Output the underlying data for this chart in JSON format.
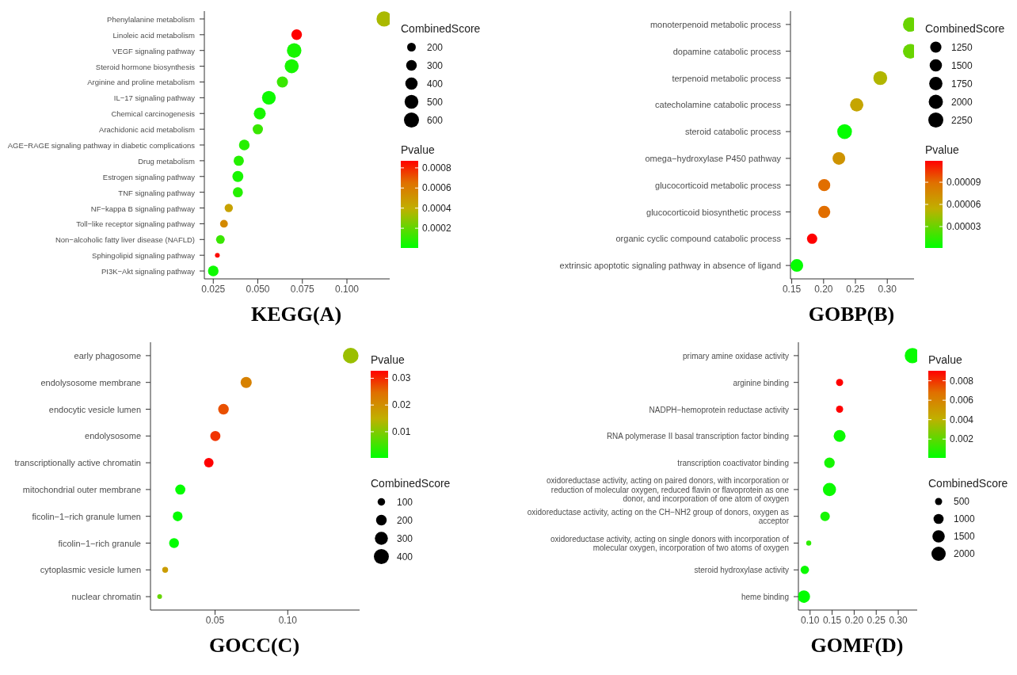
{
  "chart_data": [
    {
      "type": "bubble",
      "title": "KEGG(A)",
      "orientation": "horizontal",
      "legend_title": "CombinedScore",
      "clabel": "Pvalue",
      "categories": [
        "Phenylalanine metabolism",
        "Linoleic acid metabolism",
        "VEGF signaling pathway",
        "Steroid hormone biosynthesis",
        "Arginine and proline metabolism",
        "IL−17 signaling pathway",
        "Chemical carcinogenesis",
        "Arachidonic acid metabolism",
        "AGE−RAGE signaling pathway in diabetic complications",
        "Drug metabolism",
        "Estrogen signaling pathway",
        "TNF signaling pathway",
        "NF−kappa B signaling pathway",
        "Toll−like receptor signaling pathway",
        "Non−alcoholic fatty liver disease (NAFLD)",
        "Sphingolipid signaling pathway",
        "PI3K−Akt signaling pathway"
      ],
      "values": [
        0.1209,
        0.0718,
        0.0704,
        0.069,
        0.0638,
        0.0562,
        0.0511,
        0.05,
        0.0424,
        0.0393,
        0.0388,
        0.0388,
        0.0337,
        0.031,
        0.029,
        0.0273,
        0.025
      ],
      "sizes": [
        620,
        300,
        560,
        520,
        330,
        500,
        380,
        280,
        300,
        280,
        320,
        270,
        180,
        160,
        200,
        60,
        300
      ],
      "cvalues": [
        0.00035,
        0.00087,
        5e-05,
        5e-05,
        0.00012,
        3e-05,
        5e-05,
        0.00012,
        8e-05,
        8e-05,
        5e-05,
        8e-05,
        0.00045,
        0.00055,
        0.00012,
        0.00085,
        3e-05
      ],
      "size_legend": [
        200,
        300,
        400,
        500,
        600
      ],
      "clim": [
        4e-06,
        0.00087
      ],
      "cticks": [
        0.0002,
        0.0004,
        0.0006,
        0.0008
      ],
      "xlim": [
        0.02,
        0.124
      ],
      "xticks": [
        0.025,
        {
          "value": 0.05,
          "label": "0.050"
        },
        0.075,
        {
          "value": 0.1,
          "label": "0.100"
        }
      ]
    },
    {
      "type": "bubble",
      "title": "GOBP(B)",
      "orientation": "horizontal",
      "legend_title": "CombinedScore",
      "clabel": "Pvalue",
      "categories": [
        "monoterpenoid metabolic process",
        "dopamine catabolic process",
        "terpenoid metabolic process",
        "catecholamine catabolic process",
        "steroid catabolic process",
        "omega−hydroxylase P450 pathway",
        "glucocorticoid metabolic process",
        "glucocorticoid biosynthetic process",
        "organic cyclic compound catabolic process",
        "extrinsic apoptotic signaling pathway in absence of ligand"
      ],
      "values": [
        0.336,
        0.336,
        0.289,
        0.252,
        0.233,
        0.224,
        0.201,
        0.201,
        0.182,
        0.158
      ],
      "sizes": [
        2100,
        2100,
        1900,
        1750,
        2150,
        1600,
        1450,
        1450,
        1050,
        1600
      ],
      "cvalues": [
        3e-05,
        3e-05,
        5e-05,
        6e-05,
        2e-06,
        7e-05,
        9e-05,
        9e-05,
        0.000119,
        2e-06
      ],
      "size_legend": [
        1250,
        1500,
        1750,
        2000,
        2250
      ],
      "clim": [
        1e-06,
        0.000119
      ],
      "cticks": [
        {
          "value": 3e-05,
          "label": "0.00003"
        },
        {
          "value": 6e-05,
          "label": "0.00006"
        },
        {
          "value": 9e-05,
          "label": "0.00009"
        }
      ],
      "xlim": [
        0.148,
        0.342
      ],
      "xticks": [
        0.15,
        {
          "value": 0.2,
          "label": "0.20"
        },
        0.25,
        {
          "value": 0.3,
          "label": "0.30"
        }
      ]
    },
    {
      "type": "bubble",
      "title": "GOCC(C)",
      "orientation": "horizontal",
      "legend_title": "CombinedScore",
      "clabel": "Pvalue",
      "categories": [
        "early phagosome",
        "endolysosome membrane",
        "endocytic vesicle lumen",
        "endolysosome",
        "transcriptionally active chromatin",
        "mitochondrial outer membrane",
        "ficolin−1−rich granule lumen",
        "ficolin−1−rich granule",
        "cytoplasmic vesicle lumen",
        "nuclear chromatin"
      ],
      "values": [
        0.1433,
        0.0714,
        0.0558,
        0.0502,
        0.0457,
        0.0261,
        0.0243,
        0.0218,
        0.0157,
        0.0119
      ],
      "sizes": [
        430,
        220,
        200,
        180,
        160,
        180,
        170,
        170,
        60,
        40
      ],
      "cvalues": [
        0.012,
        0.022,
        0.027,
        0.029,
        0.0328,
        0.0005,
        0.0005,
        0.0003,
        0.018,
        0.008
      ],
      "size_legend": [
        100,
        200,
        300,
        400
      ],
      "clim": [
        0.0002,
        0.0328
      ],
      "cticks": [
        0.01,
        0.02,
        0.03
      ],
      "xlim": [
        0.0056,
        0.1494
      ],
      "xticks": [
        0.05,
        {
          "value": 0.1,
          "label": "0.10"
        }
      ]
    },
    {
      "type": "bubble",
      "title": "GOMF(D)",
      "orientation": "horizontal",
      "legend_title": "CombinedScore",
      "clabel": "Pvalue",
      "categories": [
        "primary amine oxidase activity",
        "arginine binding",
        "NADPH−hemoprotein reductase activity",
        "RNA polymerase II basal transcription factor binding",
        "transcription coactivator binding",
        "oxidoreductase activity, acting on paired donors, with incorporation or reduction of molecular oxygen, reduced flavin or flavoprotein as one donor, and incorporation of one atom of oxygen",
        "oxidoreductase activity, acting on the CH−NH2 group of donors, oxygen as acceptor",
        "oxidoreductase activity, acting on single donors with incorporation of molecular oxygen, incorporation of two atoms of oxygen",
        "steroid hydroxylase activity",
        "heme binding"
      ],
      "values": [
        0.332,
        0.167,
        0.167,
        0.167,
        0.144,
        0.144,
        0.134,
        0.097,
        0.088,
        0.086
      ],
      "sizes": [
        2300,
        500,
        500,
        1400,
        1100,
        1700,
        900,
        250,
        700,
        1500
      ],
      "cvalues": [
        0.0002,
        0.00903,
        0.00903,
        0.0003,
        0.0005,
        0.0003,
        0.0005,
        0.001,
        0.0003,
        0.0001
      ],
      "size_legend": [
        500,
        1000,
        1500,
        2000
      ],
      "clim": [
        6e-05,
        0.00903
      ],
      "cticks": [
        0.002,
        0.004,
        0.006,
        0.008
      ],
      "xlim": [
        0.0735,
        0.343
      ],
      "xticks": [
        {
          "value": 0.1,
          "label": "0.10"
        },
        0.15,
        {
          "value": 0.2,
          "label": "0.20"
        },
        0.25,
        {
          "value": 0.3,
          "label": "0.30"
        }
      ]
    }
  ]
}
